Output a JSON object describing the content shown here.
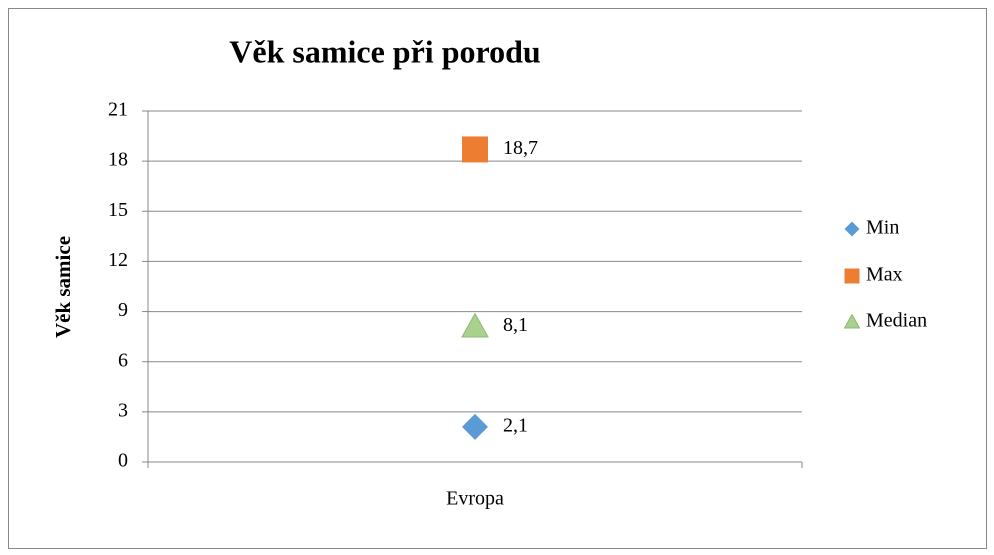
{
  "chart_data": {
    "type": "line",
    "title": "Věk samice při porodu",
    "y_label": "Věk samice",
    "categories": [
      "Evropa"
    ],
    "series": [
      {
        "name": "Min",
        "color": "#5b9bd5",
        "marker": "diamond",
        "values": [
          2.1
        ],
        "value_labels": [
          "2,1"
        ]
      },
      {
        "name": "Max",
        "color": "#ed7d31",
        "marker": "square",
        "values": [
          18.7
        ],
        "value_labels": [
          "18,7"
        ]
      },
      {
        "name": "Median",
        "color": "#a9d18e",
        "marker": "triangle",
        "values": [
          8.1
        ],
        "value_labels": [
          "8,1"
        ]
      }
    ],
    "ylim": [
      0,
      21
    ],
    "yticks": [
      0,
      3,
      6,
      9,
      12,
      15,
      18,
      21
    ],
    "grid": true,
    "legend": "right"
  }
}
